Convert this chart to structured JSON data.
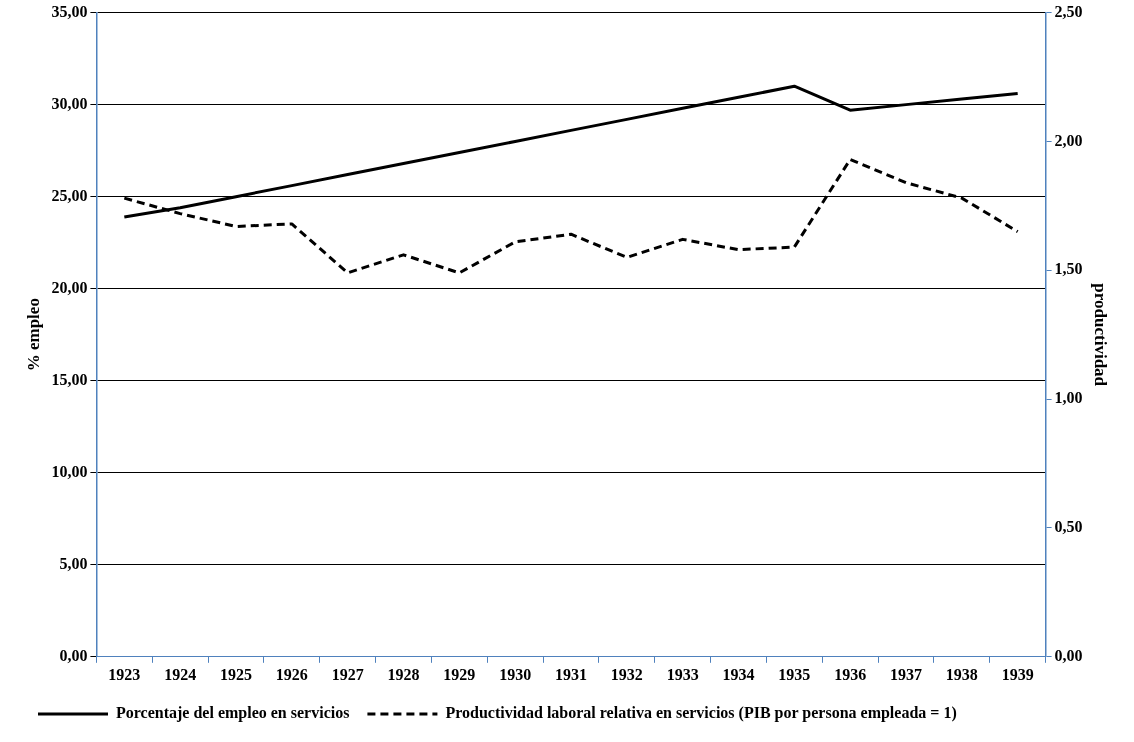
{
  "chart_data": {
    "type": "line",
    "ylabel": "% empleo",
    "y2label": "productividad",
    "categories": [
      "1923",
      "1924",
      "1925",
      "1926",
      "1927",
      "1928",
      "1929",
      "1930",
      "1931",
      "1932",
      "1933",
      "1934",
      "1935",
      "1936",
      "1937",
      "1938",
      "1939"
    ],
    "series": [
      {
        "name": "Porcentaje del empleo en servicios",
        "color": "#000000",
        "line_style": "solid",
        "values": [
          23.9,
          24.4,
          25.0,
          25.6,
          26.2,
          26.8,
          27.4,
          28.0,
          28.6,
          29.2,
          29.8,
          30.4,
          31.0,
          29.7,
          30.0,
          30.3,
          30.6
        ]
      },
      {
        "name": "Productividad laboral relativa en servicios (PIB por persona empleada = 1)",
        "color": "#000000",
        "line_style": "dashed",
        "axis": "y2",
        "values": [
          1.78,
          1.72,
          1.67,
          1.68,
          1.49,
          1.56,
          1.49,
          1.61,
          1.64,
          1.55,
          1.62,
          1.58,
          1.59,
          1.93,
          1.84,
          1.78,
          1.65
        ]
      }
    ],
    "ylim": [
      0,
      35
    ],
    "yticks": [
      {
        "value": 0,
        "label": "0,00"
      },
      {
        "value": 5,
        "label": "5,00"
      },
      {
        "value": 10,
        "label": "10,00"
      },
      {
        "value": 15,
        "label": "15,00"
      },
      {
        "value": 20,
        "label": "20,00"
      },
      {
        "value": 25,
        "label": "25,00"
      },
      {
        "value": 30,
        "label": "30,00"
      },
      {
        "value": 35,
        "label": "35,00"
      }
    ],
    "y2lim": [
      0,
      2.5
    ],
    "y2ticks": [
      {
        "value": 0,
        "label": "0,00"
      },
      {
        "value": 0.5,
        "label": "0,50"
      },
      {
        "value": 1,
        "label": "1,00"
      },
      {
        "value": 1.5,
        "label": "1,50"
      },
      {
        "value": 2,
        "label": "2,00"
      },
      {
        "value": 2.5,
        "label": "2,50"
      }
    ],
    "grid": "y",
    "legend": "bottom",
    "marker": "none"
  }
}
